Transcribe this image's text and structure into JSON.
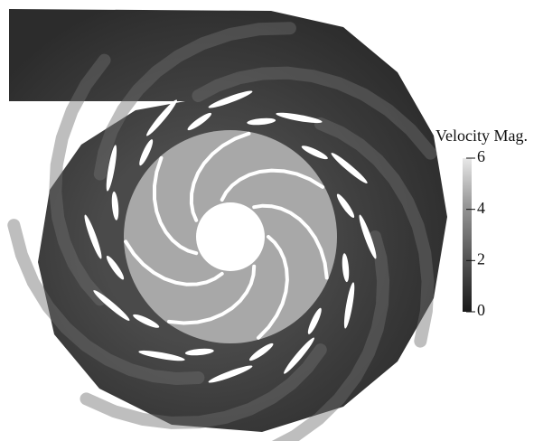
{
  "colorbar": {
    "title": "Velocity Mag.",
    "lim": [
      0,
      6
    ],
    "ticks": [
      0,
      2,
      4,
      6
    ]
  }
}
